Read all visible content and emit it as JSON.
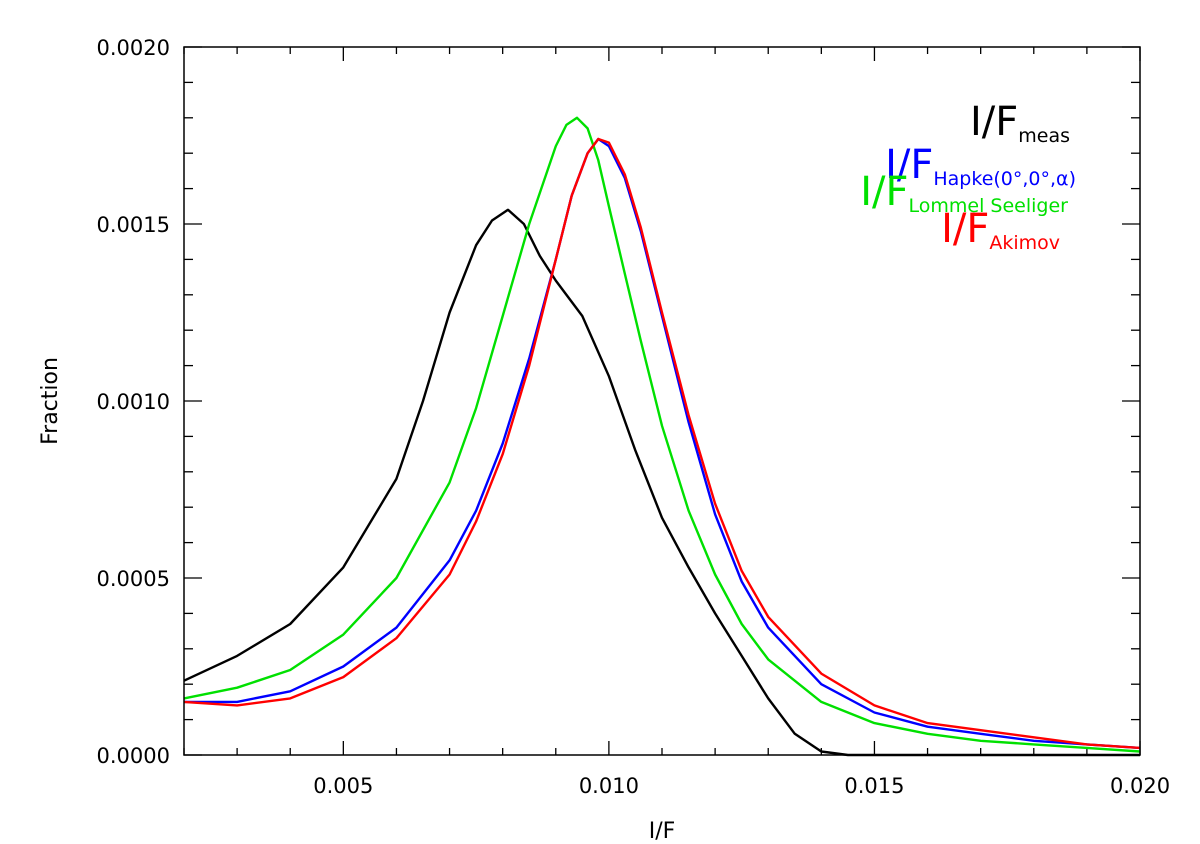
{
  "chart_data": {
    "type": "line",
    "title": "",
    "xlabel": "I/F",
    "ylabel": "Fraction",
    "xlim": [
      0.002,
      0.02
    ],
    "ylim": [
      0.0,
      0.002
    ],
    "x_ticks": [
      0.005,
      0.01,
      0.015,
      0.02
    ],
    "x_tick_labels": [
      "0.005",
      "0.010",
      "0.015",
      "0.020"
    ],
    "y_ticks": [
      0.0,
      0.0005,
      0.001,
      0.0015,
      0.002
    ],
    "y_tick_labels": [
      "0.0000",
      "0.0005",
      "0.0010",
      "0.0015",
      "0.0020"
    ],
    "grid": false,
    "legend_position": "top-right",
    "legend": [
      {
        "main": "I/F",
        "sub": "meas",
        "color": "#000000"
      },
      {
        "main": "I/F",
        "sub": "Hapke(0°,0°,α)",
        "color": "#0000ff"
      },
      {
        "main": "I/F",
        "sub": "Lommel Seeliger",
        "color": "#00e000"
      },
      {
        "main": "I/F",
        "sub": "Akimov",
        "color": "#ff0000"
      }
    ],
    "series": [
      {
        "color": "#000000",
        "x": [
          0.002,
          0.003,
          0.004,
          0.005,
          0.006,
          0.0065,
          0.007,
          0.0075,
          0.0078,
          0.0081,
          0.0084,
          0.0087,
          0.009,
          0.0095,
          0.01,
          0.0105,
          0.011,
          0.0115,
          0.012,
          0.0125,
          0.013,
          0.0135,
          0.014,
          0.0145,
          0.015,
          0.016,
          0.018,
          0.02
        ],
        "y": [
          0.00021,
          0.00028,
          0.00037,
          0.00053,
          0.00078,
          0.001,
          0.00125,
          0.00144,
          0.00151,
          0.00154,
          0.0015,
          0.00141,
          0.00134,
          0.00124,
          0.00107,
          0.00086,
          0.00067,
          0.00053,
          0.0004,
          0.00028,
          0.00016,
          6e-05,
          1e-05,
          0.0,
          0.0,
          0.0,
          0.0,
          0.0
        ]
      },
      {
        "color": "#0000ff",
        "x": [
          0.002,
          0.003,
          0.004,
          0.005,
          0.006,
          0.007,
          0.0075,
          0.008,
          0.0085,
          0.009,
          0.0093,
          0.0096,
          0.0098,
          0.01,
          0.0103,
          0.0106,
          0.011,
          0.0115,
          0.012,
          0.0125,
          0.013,
          0.014,
          0.015,
          0.016,
          0.017,
          0.018,
          0.019,
          0.02
        ],
        "y": [
          0.00015,
          0.00015,
          0.00018,
          0.00025,
          0.00036,
          0.00055,
          0.00069,
          0.00088,
          0.00112,
          0.0014,
          0.00158,
          0.0017,
          0.00174,
          0.00172,
          0.00163,
          0.00148,
          0.00124,
          0.00094,
          0.00068,
          0.00049,
          0.00036,
          0.0002,
          0.00012,
          8e-05,
          6e-05,
          4e-05,
          3e-05,
          2e-05
        ]
      },
      {
        "color": "#00e000",
        "x": [
          0.002,
          0.003,
          0.004,
          0.005,
          0.006,
          0.007,
          0.0075,
          0.008,
          0.0085,
          0.009,
          0.0092,
          0.0094,
          0.0096,
          0.0098,
          0.01,
          0.0103,
          0.0106,
          0.011,
          0.0115,
          0.012,
          0.0125,
          0.013,
          0.014,
          0.015,
          0.016,
          0.017,
          0.018,
          0.019,
          0.02
        ],
        "y": [
          0.00016,
          0.00019,
          0.00024,
          0.00034,
          0.0005,
          0.00077,
          0.00098,
          0.00124,
          0.0015,
          0.00172,
          0.00178,
          0.0018,
          0.00177,
          0.00168,
          0.00155,
          0.00136,
          0.00117,
          0.00093,
          0.00069,
          0.00051,
          0.00037,
          0.00027,
          0.00015,
          9e-05,
          6e-05,
          4e-05,
          3e-05,
          2e-05,
          1e-05
        ]
      },
      {
        "color": "#ff0000",
        "x": [
          0.002,
          0.003,
          0.004,
          0.005,
          0.006,
          0.007,
          0.0075,
          0.008,
          0.0085,
          0.009,
          0.0093,
          0.0096,
          0.0098,
          0.01,
          0.0103,
          0.0106,
          0.011,
          0.0115,
          0.012,
          0.0125,
          0.013,
          0.014,
          0.015,
          0.016,
          0.017,
          0.018,
          0.019,
          0.02
        ],
        "y": [
          0.00015,
          0.00014,
          0.00016,
          0.00022,
          0.00033,
          0.00051,
          0.00066,
          0.00085,
          0.0011,
          0.0014,
          0.00158,
          0.0017,
          0.00174,
          0.00173,
          0.00164,
          0.00149,
          0.00125,
          0.00096,
          0.00071,
          0.00052,
          0.00039,
          0.00023,
          0.00014,
          9e-05,
          7e-05,
          5e-05,
          3e-05,
          2e-05
        ]
      }
    ]
  }
}
